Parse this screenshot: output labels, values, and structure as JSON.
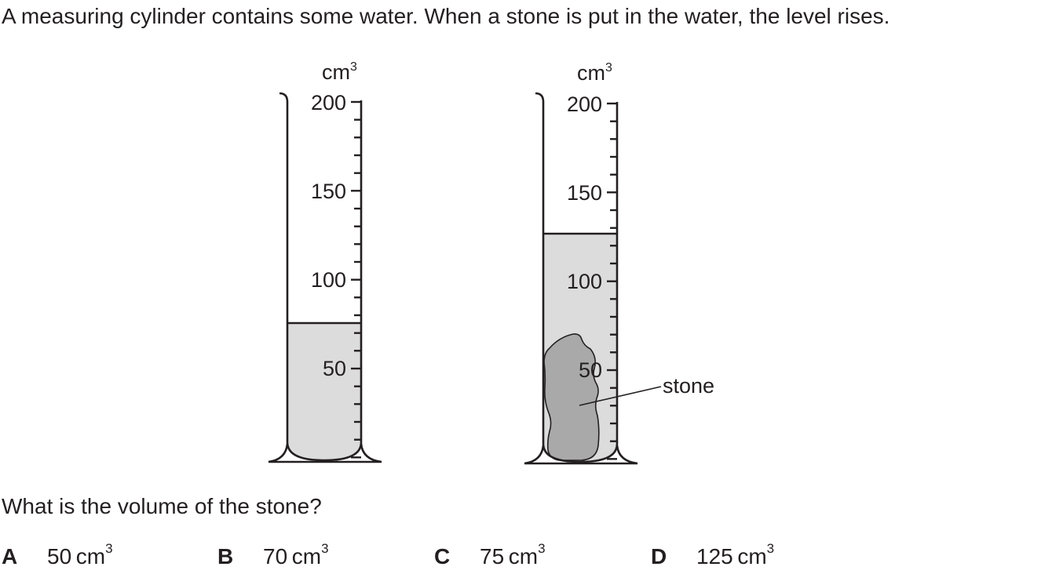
{
  "question": {
    "intro": "A measuring cylinder contains some water. When a stone is put in the water, the level rises.",
    "prompt": "What is the volume of the stone?"
  },
  "figure": {
    "unit_base": "cm",
    "unit_power": "3",
    "scale_labels": [
      "200",
      "150",
      "100",
      "50"
    ],
    "stone_label": "stone",
    "water_color": "#dcdcdc",
    "stone_color": "#a9a9a9",
    "cylinder_before_level": 75,
    "cylinder_after_level": 125
  },
  "options": [
    {
      "letter": "A",
      "value": "50",
      "unit": "cm",
      "power": "3"
    },
    {
      "letter": "B",
      "value": "70",
      "unit": "cm",
      "power": "3"
    },
    {
      "letter": "C",
      "value": "75",
      "unit": "cm",
      "power": "3"
    },
    {
      "letter": "D",
      "value": "125",
      "unit": "cm",
      "power": "3"
    }
  ]
}
